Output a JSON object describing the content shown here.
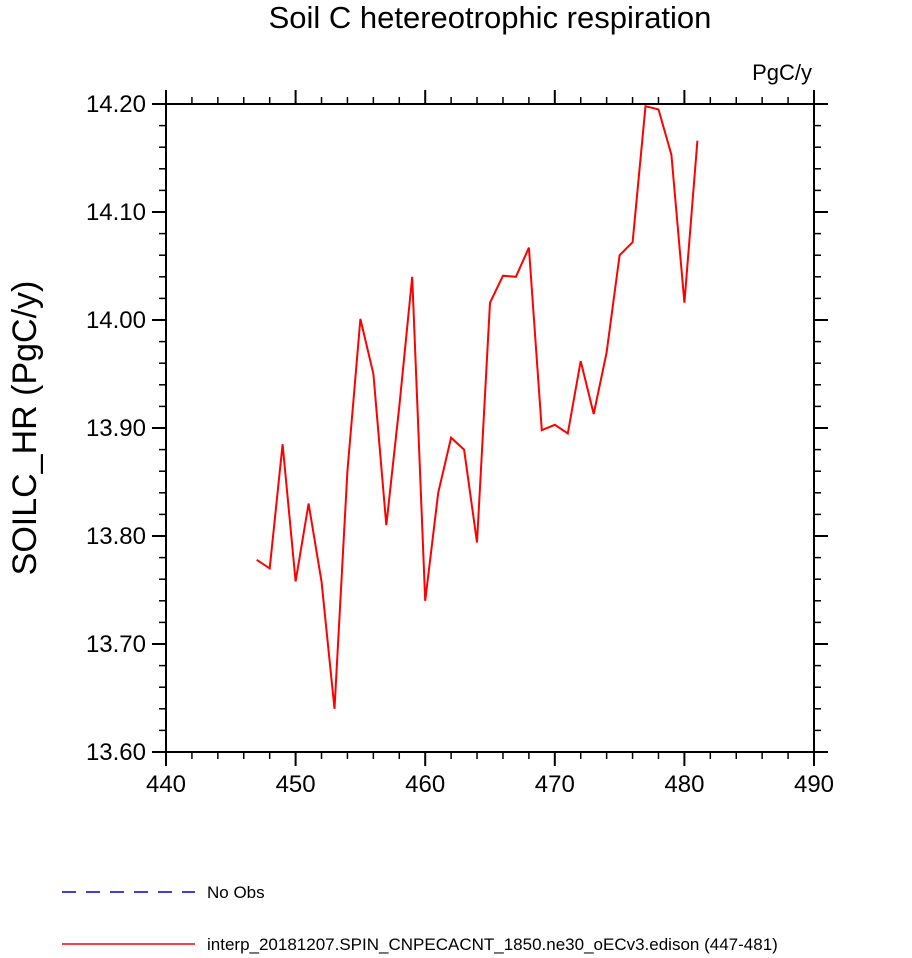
{
  "chart_data": {
    "type": "line",
    "title": "Soil C hetereotrophic respiration",
    "units_label": "PgC/y",
    "ylabel": "SOILC_HR  (PgC/y)",
    "xlabel": "",
    "xlim": [
      440,
      490
    ],
    "ylim": [
      13.6,
      14.2
    ],
    "xticks": [
      440,
      450,
      460,
      470,
      480,
      490
    ],
    "xtick_labels": [
      "440",
      "450",
      "460",
      "470",
      "480",
      "490"
    ],
    "yticks": [
      13.6,
      13.7,
      13.8,
      13.9,
      14.0,
      14.1,
      14.2
    ],
    "ytick_labels": [
      "13.60",
      "13.70",
      "13.80",
      "13.90",
      "14.00",
      "14.10",
      "14.20"
    ],
    "grid": false,
    "legend_position": "bottom",
    "series": [
      {
        "name": "interp_20181207.SPIN_CNPECACNT_1850.ne30_oECv3.edison (447-481)",
        "color": "#ff0000",
        "dash": "solid",
        "x": [
          447,
          448,
          449,
          450,
          451,
          452,
          453,
          454,
          455,
          456,
          457,
          458,
          459,
          460,
          461,
          462,
          463,
          464,
          465,
          466,
          467,
          468,
          469,
          470,
          471,
          472,
          473,
          474,
          475,
          476,
          477,
          478,
          479,
          480,
          481
        ],
        "y": [
          13.778,
          13.77,
          13.885,
          13.758,
          13.83,
          13.758,
          13.64,
          13.86,
          14.001,
          13.95,
          13.81,
          13.92,
          14.04,
          13.74,
          13.84,
          13.891,
          13.88,
          13.794,
          14.016,
          14.041,
          14.04,
          14.067,
          13.898,
          13.903,
          13.895,
          13.962,
          13.913,
          13.97,
          14.06,
          14.072,
          14.198,
          14.195,
          14.153,
          14.016,
          14.166
        ]
      }
    ],
    "legend": [
      {
        "label": "No Obs",
        "color": "#0000cc",
        "dash": "dashed"
      },
      {
        "label": "interp_20181207.SPIN_CNPECACNT_1850.ne30_oECv3.edison (447-481)",
        "color": "#ff0000",
        "dash": "solid"
      }
    ]
  }
}
